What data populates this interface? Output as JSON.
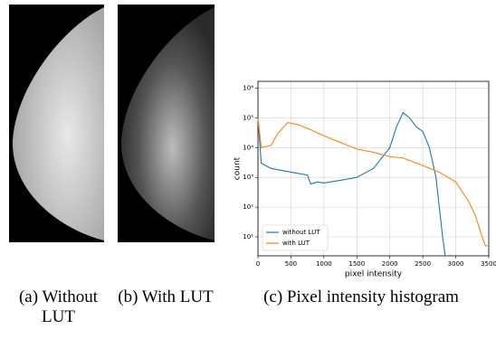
{
  "subfigures": [
    {
      "caption": "(a) Without LUT"
    },
    {
      "caption": "(b) With LUT"
    },
    {
      "caption": "(c) Pixel intensity histogram"
    }
  ],
  "chart_data": {
    "type": "line",
    "xlabel": "pixel intensity",
    "ylabel": "count",
    "xlim": [
      0,
      3500
    ],
    "xticks": [
      0,
      500,
      1000,
      1500,
      2000,
      2500,
      3000,
      3500
    ],
    "ylim": [
      2.3,
      1700000
    ],
    "log_y": true,
    "grid": true,
    "legend": "lower left",
    "yticks": [
      {
        "value": 10,
        "label": "10¹"
      },
      {
        "value": 100,
        "label": "10²"
      },
      {
        "value": 1000,
        "label": "10³"
      },
      {
        "value": 10000,
        "label": "10⁴"
      },
      {
        "value": 100000,
        "label": "10⁵"
      },
      {
        "value": 1000000,
        "label": "10⁶"
      }
    ],
    "series": [
      {
        "name": "without LUT",
        "color": "#1f77b4",
        "x": [
          0,
          50,
          200,
          500,
          750,
          800,
          900,
          1000,
          1250,
          1500,
          1750,
          2000,
          2100,
          2200,
          2300,
          2400,
          2500,
          2600,
          2700,
          2800,
          2840
        ],
        "values": [
          100000,
          3000,
          2000,
          1500,
          1200,
          600,
          700,
          650,
          800,
          1000,
          2000,
          10000,
          50000,
          150000,
          100000,
          50000,
          35000,
          10000,
          1000,
          10,
          2.3
        ]
      },
      {
        "name": "with LUT",
        "color": "#ff7f0e",
        "x": [
          0,
          50,
          200,
          300,
          450,
          600,
          800,
          1000,
          1250,
          1500,
          1750,
          2000,
          2200,
          2500,
          2750,
          3000,
          3200,
          3300,
          3400,
          3450,
          3500
        ],
        "values": [
          100000,
          10000,
          12000,
          30000,
          70000,
          60000,
          40000,
          25000,
          15000,
          9000,
          7000,
          5000,
          4500,
          2500,
          1500,
          700,
          150,
          50,
          10,
          5,
          5
        ]
      }
    ]
  }
}
